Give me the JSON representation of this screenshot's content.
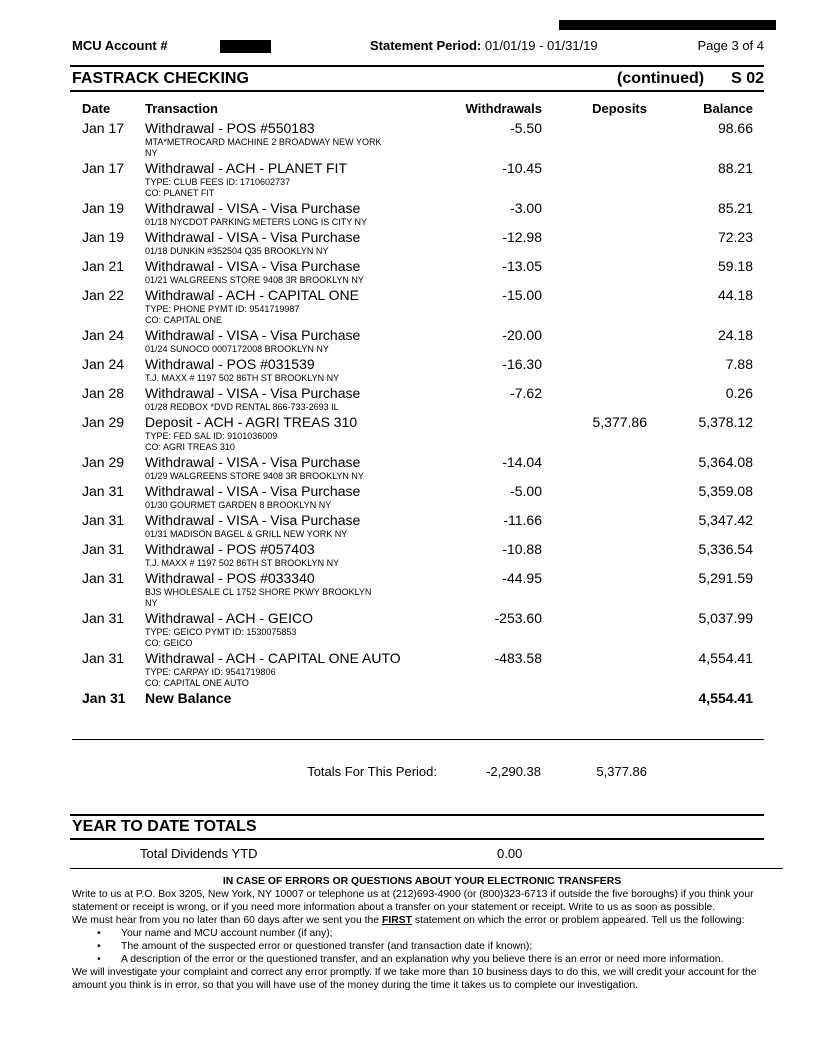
{
  "header": {
    "account_label": "MCU Account #",
    "period_label": "Statement Period:",
    "period_value": "01/01/19 - 01/31/19",
    "page": "Page 3  of  4"
  },
  "section": {
    "title": "FASTRACK CHECKING",
    "continued": "(continued)",
    "code": "S 02"
  },
  "columns": {
    "date": "Date",
    "transaction": "Transaction",
    "withdrawals": "Withdrawals",
    "deposits": "Deposits",
    "balance": "Balance"
  },
  "transactions": [
    {
      "date": "Jan 17",
      "desc": "Withdrawal - POS #550183",
      "details": [
        "MTA*METROCARD MACHINE 2 BROADWAY NEW YORK NY"
      ],
      "withdrawal": "-5.50",
      "deposit": "",
      "balance": "98.66"
    },
    {
      "date": "Jan 17",
      "desc": "Withdrawal - ACH - PLANET FIT",
      "details": [
        "TYPE: CLUB FEES ID: 1710602737",
        "CO: PLANET FIT"
      ],
      "withdrawal": "-10.45",
      "deposit": "",
      "balance": "88.21"
    },
    {
      "date": "Jan 19",
      "desc": "Withdrawal - VISA - Visa Purchase",
      "details": [
        "01/18 NYCDOT PARKING METERS LONG IS CITY NY"
      ],
      "withdrawal": "-3.00",
      "deposit": "",
      "balance": "85.21"
    },
    {
      "date": "Jan 19",
      "desc": "Withdrawal - VISA - Visa Purchase",
      "details": [
        "01/18 DUNKIN #352504 Q35 BROOKLYN NY"
      ],
      "withdrawal": "-12.98",
      "deposit": "",
      "balance": "72.23"
    },
    {
      "date": "Jan 21",
      "desc": "Withdrawal - VISA - Visa Purchase",
      "details": [
        "01/21 WALGREENS STORE 9408 3R BROOKLYN NY"
      ],
      "withdrawal": "-13.05",
      "deposit": "",
      "balance": "59.18"
    },
    {
      "date": "Jan 22",
      "desc": "Withdrawal - ACH - CAPITAL ONE",
      "details": [
        "TYPE: PHONE PYMT ID: 9541719987",
        "CO: CAPITAL ONE"
      ],
      "withdrawal": "-15.00",
      "deposit": "",
      "balance": "44.18"
    },
    {
      "date": "Jan 24",
      "desc": "Withdrawal - VISA - Visa Purchase",
      "details": [
        "01/24 SUNOCO 0007172008 BROOKLYN NY"
      ],
      "withdrawal": "-20.00",
      "deposit": "",
      "balance": "24.18"
    },
    {
      "date": "Jan 24",
      "desc": "Withdrawal - POS #031539",
      "details": [
        "T.J. MAXX # 1197 502 86TH ST BROOKLYN NY"
      ],
      "withdrawal": "-16.30",
      "deposit": "",
      "balance": "7.88"
    },
    {
      "date": "Jan 28",
      "desc": "Withdrawal - VISA - Visa Purchase",
      "details": [
        "01/28 REDBOX *DVD RENTAL 866-733-2693 IL"
      ],
      "withdrawal": "-7.62",
      "deposit": "",
      "balance": "0.26"
    },
    {
      "date": "Jan 29",
      "desc": "Deposit - ACH - AGRI TREAS 310",
      "details": [
        "TYPE: FED SAL ID: 9101036009",
        "CO: AGRI TREAS 310"
      ],
      "withdrawal": "",
      "deposit": "5,377.86",
      "balance": "5,378.12"
    },
    {
      "date": "Jan 29",
      "desc": "Withdrawal - VISA - Visa Purchase",
      "details": [
        "01/29 WALGREENS STORE 9408 3R BROOKLYN NY"
      ],
      "withdrawal": "-14.04",
      "deposit": "",
      "balance": "5,364.08"
    },
    {
      "date": "Jan 31",
      "desc": "Withdrawal - VISA - Visa Purchase",
      "details": [
        "01/30 GOURMET GARDEN 8 BROOKLYN NY"
      ],
      "withdrawal": "-5.00",
      "deposit": "",
      "balance": "5,359.08"
    },
    {
      "date": "Jan 31",
      "desc": "Withdrawal - VISA - Visa Purchase",
      "details": [
        "01/31 MADISON BAGEL & GRILL NEW YORK NY"
      ],
      "withdrawal": "-11.66",
      "deposit": "",
      "balance": "5,347.42"
    },
    {
      "date": "Jan 31",
      "desc": "Withdrawal - POS #057403",
      "details": [
        "T.J. MAXX # 1197 502 86TH ST BROOKLYN NY"
      ],
      "withdrawal": "-10.88",
      "deposit": "",
      "balance": "5,336.54"
    },
    {
      "date": "Jan 31",
      "desc": "Withdrawal - POS #033340",
      "details": [
        "BJS WHOLESALE CL 1752 SHORE PKWY BROOKLYN NY"
      ],
      "withdrawal": "-44.95",
      "deposit": "",
      "balance": "5,291.59"
    },
    {
      "date": "Jan 31",
      "desc": "Withdrawal - ACH - GEICO",
      "details": [
        "TYPE: GEICO PYMT ID: 1530075853",
        "CO: GEICO"
      ],
      "withdrawal": "-253.60",
      "deposit": "",
      "balance": "5,037.99"
    },
    {
      "date": "Jan 31",
      "desc": "Withdrawal - ACH - CAPITAL ONE AUTO",
      "details": [
        "TYPE: CARPAY ID: 9541719806",
        "CO: CAPITAL ONE AUTO"
      ],
      "withdrawal": "-483.58",
      "deposit": "",
      "balance": "4,554.41"
    }
  ],
  "new_balance": {
    "date": "Jan 31",
    "label": "New Balance",
    "balance": "4,554.41"
  },
  "totals": {
    "label": "Totals For This Period:",
    "withdrawals": "-2,290.38",
    "deposits": "5,377.86"
  },
  "ytd": {
    "title": "YEAR TO DATE TOTALS",
    "label": "Total Dividends YTD",
    "value": "0.00"
  },
  "footer": {
    "title": "IN CASE OF ERRORS OR QUESTIONS ABOUT YOUR ELECTRONIC TRANSFERS",
    "p1": "Write to us at P.O. Box 3205, New York, NY 10007 or telephone us at (212)693-4900 (or (800)323-6713 if outside the five boroughs) if you think your statement or receipt is wrong, or if you need more information about a transfer on your statement or receipt. Write to us as soon as possible.",
    "p2a": "We must hear from you no later than 60 days after we sent you the ",
    "p2b": "FIRST",
    "p2c": " statement on which the error or problem appeared. Tell us the following:",
    "bullets": [
      "Your name and MCU account number (if any);",
      "The amount of the suspected error or questioned transfer (and transaction date if known);",
      "A description of the error or the questioned transfer, and an explanation why you believe there is an error or need more information."
    ],
    "p3": "We will investigate your complaint and correct any error promptly. If we take more than 10 business days to do this, we will credit your account for the amount you think is in error, so that you will have use of the money during the time it takes us to complete our investigation."
  }
}
